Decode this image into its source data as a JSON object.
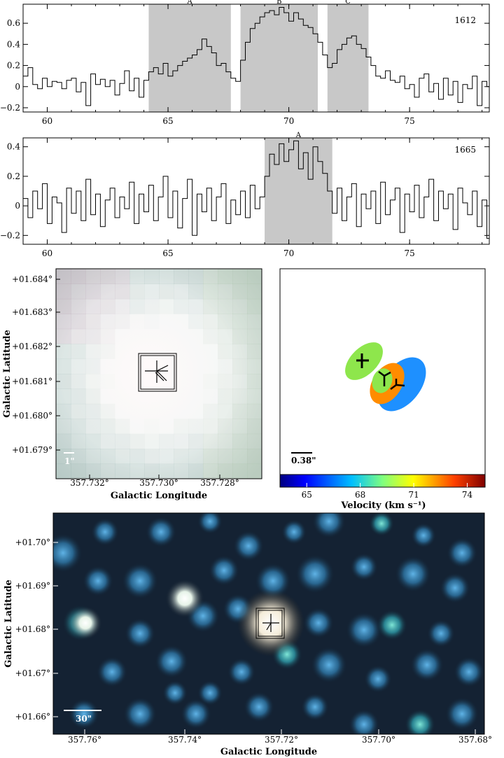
{
  "chart_data": [
    {
      "type": "line",
      "id": "spectrum-1612",
      "label": "1612",
      "xlim": [
        59,
        78.3
      ],
      "ylim": [
        -0.24,
        0.78
      ],
      "xticks": [
        60,
        65,
        70,
        75
      ],
      "yticks": [
        -0.2,
        0,
        0.2,
        0.4,
        0.6
      ],
      "regions": [
        {
          "name": "A",
          "x0": 64.2,
          "x1": 67.6
        },
        {
          "name": "B",
          "x0": 68.0,
          "x1": 71.2
        },
        {
          "name": "C",
          "x0": 71.6,
          "x1": 73.3
        }
      ],
      "x": [
        59.0,
        59.2,
        59.4,
        59.6,
        59.8,
        60.0,
        60.2,
        60.4,
        60.6,
        60.8,
        61.0,
        61.2,
        61.4,
        61.6,
        61.8,
        62.0,
        62.2,
        62.4,
        62.6,
        62.8,
        63.0,
        63.2,
        63.4,
        63.6,
        63.8,
        64.0,
        64.2,
        64.4,
        64.6,
        64.8,
        65.0,
        65.2,
        65.4,
        65.6,
        65.8,
        66.0,
        66.2,
        66.4,
        66.6,
        66.8,
        67.0,
        67.2,
        67.4,
        67.6,
        67.8,
        68.0,
        68.2,
        68.4,
        68.6,
        68.8,
        69.0,
        69.2,
        69.4,
        69.6,
        69.8,
        70.0,
        70.2,
        70.4,
        70.6,
        70.8,
        71.0,
        71.2,
        71.4,
        71.6,
        71.8,
        72.0,
        72.2,
        72.4,
        72.6,
        72.8,
        73.0,
        73.2,
        73.4,
        73.6,
        73.8,
        74.0,
        74.2,
        74.4,
        74.6,
        74.8,
        75.0,
        75.2,
        75.4,
        75.6,
        75.8,
        76.0,
        76.2,
        76.4,
        76.6,
        76.8,
        77.0,
        77.2,
        77.4,
        77.6,
        77.8,
        78.0,
        78.2
      ],
      "y": [
        0.1,
        0.18,
        0.02,
        -0.02,
        0.08,
        0.0,
        0.05,
        0.04,
        -0.02,
        0.06,
        0.08,
        -0.05,
        0.04,
        -0.18,
        0.12,
        0.02,
        0.07,
        0.0,
        0.06,
        -0.08,
        0.03,
        0.15,
        -0.04,
        0.08,
        -0.1,
        0.06,
        0.14,
        0.18,
        0.12,
        0.22,
        0.1,
        0.15,
        0.2,
        0.24,
        0.27,
        0.3,
        0.35,
        0.45,
        0.38,
        0.32,
        0.2,
        0.22,
        0.14,
        0.08,
        0.05,
        0.25,
        0.42,
        0.55,
        0.6,
        0.66,
        0.7,
        0.72,
        0.68,
        0.75,
        0.7,
        0.62,
        0.7,
        0.64,
        0.58,
        0.56,
        0.5,
        0.42,
        0.3,
        0.18,
        0.22,
        0.35,
        0.4,
        0.46,
        0.48,
        0.4,
        0.36,
        0.28,
        0.2,
        0.1,
        0.08,
        0.15,
        0.06,
        0.04,
        0.1,
        -0.02,
        0.02,
        -0.1,
        0.08,
        0.12,
        -0.05,
        0.03,
        -0.12,
        0.08,
        -0.08,
        0.05,
        -0.15,
        0.02,
        -0.02,
        0.1,
        -0.18,
        0.05,
        0.0
      ]
    },
    {
      "type": "line",
      "id": "spectrum-1665",
      "label": "1665",
      "xlim": [
        59,
        78.3
      ],
      "ylim": [
        -0.26,
        0.46
      ],
      "xticks": [
        60,
        65,
        70,
        75
      ],
      "yticks": [
        -0.2,
        0,
        0.2,
        0.4
      ],
      "regions": [
        {
          "name": "A",
          "x0": 69.0,
          "x1": 71.8
        }
      ],
      "x": [
        59.0,
        59.2,
        59.4,
        59.6,
        59.8,
        60.0,
        60.2,
        60.4,
        60.6,
        60.8,
        61.0,
        61.2,
        61.4,
        61.6,
        61.8,
        62.0,
        62.2,
        62.4,
        62.6,
        62.8,
        63.0,
        63.2,
        63.4,
        63.6,
        63.8,
        64.0,
        64.2,
        64.4,
        64.6,
        64.8,
        65.0,
        65.2,
        65.4,
        65.6,
        65.8,
        66.0,
        66.2,
        66.4,
        66.6,
        66.8,
        67.0,
        67.2,
        67.4,
        67.6,
        67.8,
        68.0,
        68.2,
        68.4,
        68.6,
        68.8,
        69.0,
        69.2,
        69.4,
        69.6,
        69.8,
        70.0,
        70.2,
        70.4,
        70.6,
        70.8,
        71.0,
        71.2,
        71.4,
        71.6,
        71.8,
        72.0,
        72.2,
        72.4,
        72.6,
        72.8,
        73.0,
        73.2,
        73.4,
        73.6,
        73.8,
        74.0,
        74.2,
        74.4,
        74.6,
        74.8,
        75.0,
        75.2,
        75.4,
        75.6,
        75.8,
        76.0,
        76.2,
        76.4,
        76.6,
        76.8,
        77.0,
        77.2,
        77.4,
        77.6,
        77.8,
        78.0,
        78.2
      ],
      "y": [
        0.05,
        -0.08,
        0.1,
        -0.02,
        0.15,
        -0.12,
        0.06,
        0.02,
        -0.18,
        0.12,
        -0.05,
        0.1,
        -0.1,
        0.18,
        -0.06,
        0.08,
        -0.14,
        0.04,
        0.12,
        -0.08,
        0.06,
        -0.02,
        0.16,
        -0.12,
        0.08,
        -0.04,
        0.14,
        -0.1,
        0.06,
        0.2,
        -0.08,
        0.1,
        -0.15,
        0.05,
        0.18,
        -0.2,
        0.08,
        -0.04,
        0.12,
        -0.1,
        0.06,
        0.15,
        -0.12,
        0.04,
        -0.06,
        0.1,
        -0.08,
        0.14,
        -0.02,
        0.06,
        0.2,
        0.35,
        0.28,
        0.42,
        0.3,
        0.38,
        0.44,
        0.25,
        0.36,
        0.18,
        0.4,
        0.3,
        0.22,
        0.1,
        -0.05,
        0.12,
        -0.1,
        0.06,
        0.15,
        -0.14,
        0.08,
        -0.02,
        0.1,
        -0.12,
        0.16,
        -0.06,
        0.04,
        0.12,
        -0.18,
        0.08,
        -0.04,
        0.14,
        -0.08,
        0.06,
        0.18,
        -0.1,
        0.1,
        -0.02,
        0.08,
        -0.16,
        0.12,
        0.02,
        -0.06,
        0.1,
        -0.14,
        0.04,
        -0.22
      ]
    },
    {
      "type": "heatmap",
      "id": "image-zoom",
      "xlabel": "Galactic Longitude",
      "ylabel": "Galactic Latitude",
      "xticks": [
        "357.732°",
        "357.730°",
        "357.728°"
      ],
      "yticks": [
        "+01.684°",
        "+01.683°",
        "+01.682°",
        "+01.681°",
        "+01.680°",
        "+01.679°"
      ],
      "scalebar": "1\""
    },
    {
      "type": "scatter",
      "id": "maser-spots",
      "xlabel": "Velocity (km s⁻¹)",
      "colorbar_ticks": [
        "65",
        "68",
        "71",
        "74"
      ],
      "colorbar_range": [
        63.5,
        75.0
      ],
      "scalebar": "0.38\"",
      "spots": [
        {
          "velocity": 69.0,
          "color": "#8ee64c"
        },
        {
          "velocity": 69.3,
          "color": "#8ee64c"
        },
        {
          "velocity": 71.8,
          "color": "#ff8c00"
        },
        {
          "velocity": 66.8,
          "color": "#1e90ff"
        }
      ]
    },
    {
      "type": "heatmap",
      "id": "image-wide",
      "xlabel": "Galactic Longitude",
      "ylabel": "Galactic Latitude",
      "xticks": [
        "357.76°",
        "357.74°",
        "357.72°",
        "357.70°",
        "357.68°"
      ],
      "yticks": [
        "+01.70°",
        "+01.69°",
        "+01.68°",
        "+01.67°",
        "+01.66°"
      ],
      "scalebar": "30\""
    }
  ]
}
